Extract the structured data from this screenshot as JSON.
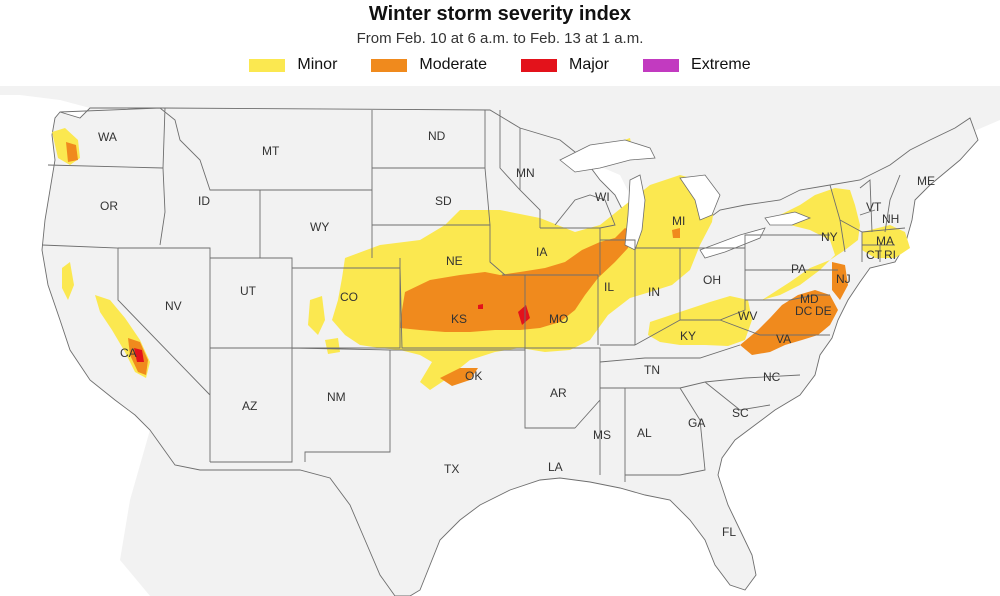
{
  "title": "Winter storm severity index",
  "subtitle": "From Feb. 10 at 6 a.m. to Feb. 13 at 1 a.m.",
  "legend": [
    {
      "label": "Minor",
      "color": "#fbe850"
    },
    {
      "label": "Moderate",
      "color": "#f08a1d"
    },
    {
      "label": "Major",
      "color": "#e3121b"
    },
    {
      "label": "Extreme",
      "color": "#c23ac0"
    }
  ],
  "colors": {
    "land": "#f2f2f2",
    "water": "#ffffff",
    "border": "#6e6e6e"
  },
  "states": {
    "WA": "WA",
    "OR": "OR",
    "CA": "CA",
    "ID": "ID",
    "NV": "NV",
    "MT": "MT",
    "WY": "WY",
    "UT": "UT",
    "AZ": "AZ",
    "CO": "CO",
    "NM": "NM",
    "ND": "ND",
    "SD": "SD",
    "NE": "NE",
    "KS": "KS",
    "OK": "OK",
    "TX": "TX",
    "MN": "MN",
    "IA": "IA",
    "MO": "MO",
    "AR": "AR",
    "LA": "LA",
    "WI": "WI",
    "IL": "IL",
    "MS": "MS",
    "MI": "MI",
    "IN": "IN",
    "KY": "KY",
    "TN": "TN",
    "AL": "AL",
    "OH": "OH",
    "GA": "GA",
    "FL": "FL",
    "SC": "SC",
    "NC": "NC",
    "VA": "VA",
    "WV": "WV",
    "PA": "PA",
    "NY": "NY",
    "ME": "ME",
    "VT": "VT",
    "NH": "NH",
    "MA": "MA",
    "CT": "CT",
    "RI": "RI",
    "NJ": "NJ",
    "MD": "MD",
    "DE": "DE",
    "DC": "DC"
  }
}
